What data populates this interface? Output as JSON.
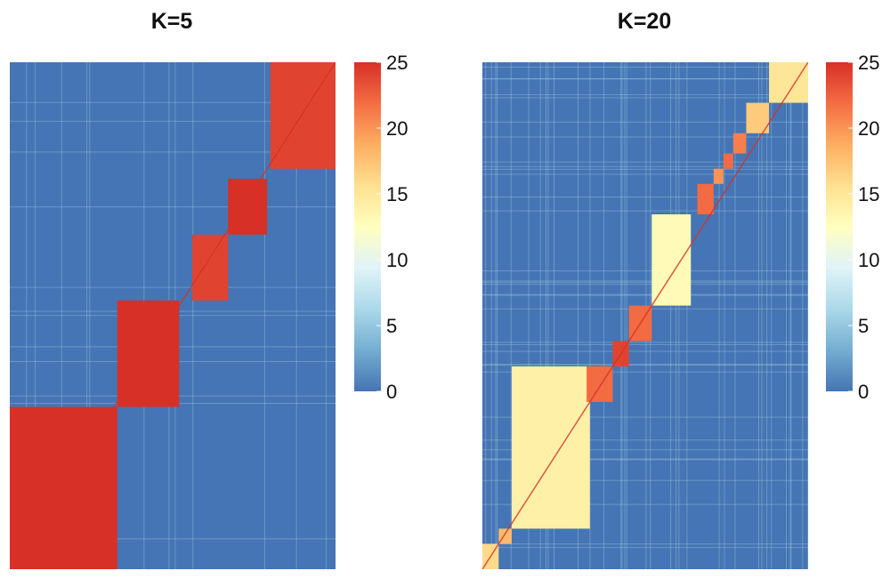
{
  "chart_data": [
    {
      "type": "heatmap",
      "title": "K=5",
      "colorbar": {
        "min": 0,
        "max": 25,
        "ticks": [
          0,
          5,
          10,
          15,
          20,
          25
        ]
      },
      "colorscale": [
        "#4575b4",
        "#74add1",
        "#abd9e9",
        "#e0f3f8",
        "#ffffbf",
        "#fee090",
        "#fdae61",
        "#f46d43",
        "#d73027"
      ],
      "blocks": [
        {
          "rows": [
            0.0,
            0.32
          ],
          "cols": [
            0.0,
            0.33
          ],
          "value": 25
        },
        {
          "rows": [
            0.32,
            0.53
          ],
          "cols": [
            0.33,
            0.52
          ],
          "value": 25
        },
        {
          "rows": [
            0.53,
            0.66
          ],
          "cols": [
            0.56,
            0.67
          ],
          "value": 24
        },
        {
          "rows": [
            0.66,
            0.77
          ],
          "cols": [
            0.67,
            0.79
          ],
          "value": 25
        },
        {
          "rows": [
            0.79,
            1.0
          ],
          "cols": [
            0.8,
            1.0
          ],
          "value": 24
        }
      ]
    },
    {
      "type": "heatmap",
      "title": "K=20",
      "colorbar": {
        "min": 0,
        "max": 25,
        "ticks": [
          0,
          5,
          10,
          15,
          20,
          25
        ]
      },
      "colorscale": [
        "#4575b4",
        "#74add1",
        "#abd9e9",
        "#e0f3f8",
        "#ffffbf",
        "#fee090",
        "#fdae61",
        "#f46d43",
        "#d73027"
      ],
      "blocks": [
        {
          "rows": [
            0.0,
            0.05
          ],
          "cols": [
            0.0,
            0.05
          ],
          "value": 16
        },
        {
          "rows": [
            0.05,
            0.08
          ],
          "cols": [
            0.05,
            0.09
          ],
          "value": 18
        },
        {
          "rows": [
            0.08,
            0.4
          ],
          "cols": [
            0.09,
            0.33
          ],
          "value": 14
        },
        {
          "rows": [
            0.33,
            0.4
          ],
          "cols": [
            0.32,
            0.4
          ],
          "value": 22
        },
        {
          "rows": [
            0.4,
            0.45
          ],
          "cols": [
            0.4,
            0.45
          ],
          "value": 24
        },
        {
          "rows": [
            0.45,
            0.52
          ],
          "cols": [
            0.45,
            0.52
          ],
          "value": 22
        },
        {
          "rows": [
            0.52,
            0.7
          ],
          "cols": [
            0.52,
            0.64
          ],
          "value": 13
        },
        {
          "rows": [
            0.7,
            0.76
          ],
          "cols": [
            0.66,
            0.71
          ],
          "value": 22
        },
        {
          "rows": [
            0.76,
            0.79
          ],
          "cols": [
            0.71,
            0.74
          ],
          "value": 20
        },
        {
          "rows": [
            0.79,
            0.82
          ],
          "cols": [
            0.74,
            0.77
          ],
          "value": 22
        },
        {
          "rows": [
            0.82,
            0.86
          ],
          "cols": [
            0.77,
            0.81
          ],
          "value": 21
        },
        {
          "rows": [
            0.86,
            0.92
          ],
          "cols": [
            0.81,
            0.88
          ],
          "value": 17
        },
        {
          "rows": [
            0.92,
            1.0
          ],
          "cols": [
            0.88,
            1.0
          ],
          "value": 15
        }
      ]
    }
  ]
}
